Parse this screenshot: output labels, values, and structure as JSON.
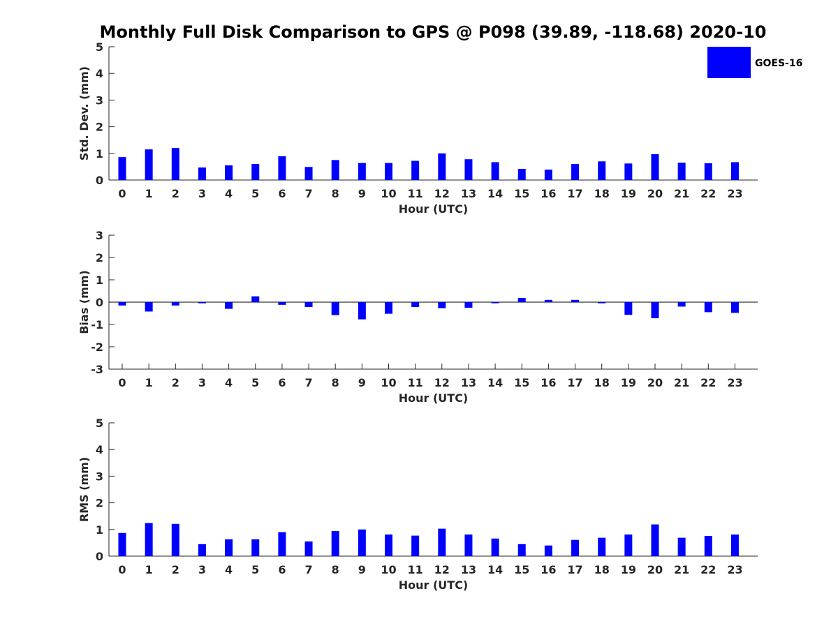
{
  "figure": {
    "title": "Monthly Full Disk Comparison to GPS @ P098 (39.89, -118.68) 2020-10",
    "legend": {
      "label": "GOES-16",
      "color": "#0000ff",
      "placement": "top-right"
    }
  },
  "chart_data": [
    {
      "type": "bar",
      "xlabel": "Hour (UTC)",
      "ylabel": "Std. Dev. (mm)",
      "ylim": [
        0,
        5
      ],
      "yticks": [
        0,
        1,
        2,
        3,
        4,
        5
      ],
      "grid": false,
      "categories": [
        "0",
        "1",
        "2",
        "3",
        "4",
        "5",
        "6",
        "7",
        "8",
        "9",
        "10",
        "11",
        "12",
        "13",
        "14",
        "15",
        "16",
        "17",
        "18",
        "19",
        "20",
        "21",
        "22",
        "23"
      ],
      "series": [
        {
          "name": "GOES-16",
          "color": "#0000ff",
          "values": [
            0.86,
            1.15,
            1.2,
            0.47,
            0.55,
            0.6,
            0.89,
            0.49,
            0.75,
            0.64,
            0.64,
            0.72,
            1.0,
            0.78,
            0.67,
            0.42,
            0.39,
            0.6,
            0.7,
            0.62,
            0.97,
            0.65,
            0.63,
            0.67
          ]
        }
      ]
    },
    {
      "type": "bar",
      "xlabel": "Hour (UTC)",
      "ylabel": "Bias (mm)",
      "ylim": [
        -3,
        3
      ],
      "yticks": [
        -3,
        -2,
        -1,
        0,
        1,
        2,
        3
      ],
      "grid": false,
      "zero_line": true,
      "categories": [
        "0",
        "1",
        "2",
        "3",
        "4",
        "5",
        "6",
        "7",
        "8",
        "9",
        "10",
        "11",
        "12",
        "13",
        "14",
        "15",
        "16",
        "17",
        "18",
        "19",
        "20",
        "21",
        "22",
        "23"
      ],
      "series": [
        {
          "name": "GOES-16",
          "color": "#0000ff",
          "values": [
            -0.15,
            -0.42,
            -0.15,
            -0.05,
            -0.3,
            0.26,
            -0.12,
            -0.22,
            -0.58,
            -0.77,
            -0.52,
            -0.22,
            -0.27,
            -0.25,
            -0.05,
            0.19,
            0.1,
            0.1,
            -0.05,
            -0.57,
            -0.72,
            -0.2,
            -0.45,
            -0.48
          ]
        }
      ]
    },
    {
      "type": "bar",
      "xlabel": "Hour (UTC)",
      "ylabel": "RMS (mm)",
      "ylim": [
        0,
        5
      ],
      "yticks": [
        0,
        1,
        2,
        3,
        4,
        5
      ],
      "grid": false,
      "categories": [
        "0",
        "1",
        "2",
        "3",
        "4",
        "5",
        "6",
        "7",
        "8",
        "9",
        "10",
        "11",
        "12",
        "13",
        "14",
        "15",
        "16",
        "17",
        "18",
        "19",
        "20",
        "21",
        "22",
        "23"
      ],
      "series": [
        {
          "name": "GOES-16",
          "color": "#0000ff",
          "values": [
            0.87,
            1.24,
            1.21,
            0.45,
            0.63,
            0.63,
            0.9,
            0.55,
            0.94,
            1.0,
            0.81,
            0.77,
            1.03,
            0.81,
            0.66,
            0.45,
            0.4,
            0.61,
            0.69,
            0.81,
            1.19,
            0.69,
            0.76,
            0.81
          ]
        }
      ]
    }
  ]
}
